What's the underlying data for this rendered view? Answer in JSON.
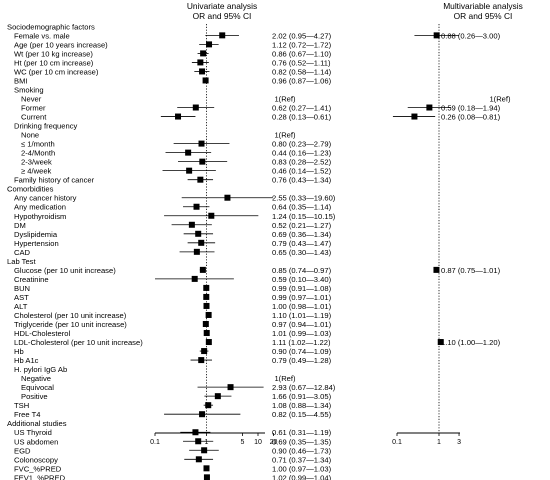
{
  "chart_data": {
    "type": "forest",
    "panels": [
      {
        "title": [
          "Univariate analysis",
          "OR and 95% CI"
        ],
        "scale": "log",
        "range": [
          0.1,
          20
        ],
        "ticks": [
          "0.1",
          "1",
          "5",
          "10",
          "20"
        ],
        "reference_line": 1
      },
      {
        "title": [
          "Multivariable analysis",
          "OR and 95% CI"
        ],
        "scale": "log",
        "range": [
          0.1,
          3
        ],
        "ticks": [
          "0.1",
          "1",
          "3"
        ],
        "reference_line": 1
      }
    ],
    "rows": [
      {
        "label": "Sociodemographic factors",
        "indent": 0,
        "type": "header"
      },
      {
        "label": "Female vs. male",
        "indent": 1,
        "uni": {
          "or": 2.02,
          "lo": 0.95,
          "hi": 4.27,
          "text": "2.02 (0.95—4.27)"
        },
        "multi": {
          "or": 0.88,
          "lo": 0.26,
          "hi": 3.0,
          "text": "0.88 (0.26—3.00)"
        }
      },
      {
        "label": "Age (per 10 years increase)",
        "indent": 1,
        "uni": {
          "or": 1.12,
          "lo": 0.72,
          "hi": 1.72,
          "text": "1.12 (0.72—1.72)"
        }
      },
      {
        "label": "Wt (per 10 kg increase)",
        "indent": 1,
        "uni": {
          "or": 0.86,
          "lo": 0.67,
          "hi": 1.1,
          "text": "0.86 (0.67—1.10)"
        }
      },
      {
        "label": "Ht (per 10 cm increase)",
        "indent": 1,
        "uni": {
          "or": 0.76,
          "lo": 0.52,
          "hi": 1.11,
          "text": "0.76 (0.52—1.11)"
        }
      },
      {
        "label": "WC (per 10 cm increase)",
        "indent": 1,
        "uni": {
          "or": 0.82,
          "lo": 0.58,
          "hi": 1.14,
          "text": "0.82 (0.58—1.14)"
        }
      },
      {
        "label": "BMI",
        "indent": 1,
        "uni": {
          "or": 0.96,
          "lo": 0.87,
          "hi": 1.06,
          "text": "0.96 (0.87—1.06)"
        }
      },
      {
        "label": "Smoking",
        "indent": 1,
        "type": "header"
      },
      {
        "label": "Never",
        "indent": 2,
        "uni": {
          "text": "1(Ref)"
        },
        "multi": {
          "text": "1(Ref)"
        }
      },
      {
        "label": "Former",
        "indent": 2,
        "uni": {
          "or": 0.62,
          "lo": 0.27,
          "hi": 1.41,
          "text": "0.62 (0.27—1.41)"
        },
        "multi": {
          "or": 0.59,
          "lo": 0.18,
          "hi": 1.94,
          "text": "0.59 (0.18—1.94)"
        }
      },
      {
        "label": "Current",
        "indent": 2,
        "uni": {
          "or": 0.28,
          "lo": 0.13,
          "hi": 0.61,
          "text": "0.28 (0.13—0.61)"
        },
        "multi": {
          "or": 0.26,
          "lo": 0.08,
          "hi": 0.81,
          "text": "0.26 (0.08—0.81)"
        }
      },
      {
        "label": "Drinking frequency",
        "indent": 1,
        "type": "header"
      },
      {
        "label": "None",
        "indent": 2,
        "uni": {
          "text": "1(Ref)"
        }
      },
      {
        "label": "≤ 1/month",
        "indent": 2,
        "uni": {
          "or": 0.8,
          "lo": 0.23,
          "hi": 2.79,
          "text": "0.80 (0.23—2.79)"
        }
      },
      {
        "label": "2-4/Month",
        "indent": 2,
        "uni": {
          "or": 0.44,
          "lo": 0.16,
          "hi": 1.23,
          "text": "0.44 (0.16—1.23)"
        }
      },
      {
        "label": "2-3/week",
        "indent": 2,
        "uni": {
          "or": 0.83,
          "lo": 0.28,
          "hi": 2.52,
          "text": "0.83 (0.28—2.52)"
        }
      },
      {
        "label": "≥ 4/week",
        "indent": 2,
        "uni": {
          "or": 0.46,
          "lo": 0.14,
          "hi": 1.52,
          "text": "0.46 (0.14—1.52)"
        }
      },
      {
        "label": "Family history of cancer",
        "indent": 1,
        "uni": {
          "or": 0.76,
          "lo": 0.43,
          "hi": 1.34,
          "text": "0.76 (0.43—1.34)"
        }
      },
      {
        "label": "Comorbidities",
        "indent": 0,
        "type": "header"
      },
      {
        "label": "Any cancer history",
        "indent": 1,
        "uni": {
          "or": 2.55,
          "lo": 0.33,
          "hi": 19.6,
          "text": "2.55 (0.33—19.60)"
        }
      },
      {
        "label": "Any medication",
        "indent": 1,
        "uni": {
          "or": 0.64,
          "lo": 0.35,
          "hi": 1.14,
          "text": "0.64 (0.35—1.14)"
        }
      },
      {
        "label": "Hypothyroidism",
        "indent": 1,
        "uni": {
          "or": 1.24,
          "lo": 0.15,
          "hi": 10.15,
          "text": "1.24 (0.15—10.15)"
        }
      },
      {
        "label": "DM",
        "indent": 1,
        "uni": {
          "or": 0.52,
          "lo": 0.21,
          "hi": 1.27,
          "text": "0.52 (0.21—1.27)"
        }
      },
      {
        "label": "Dyslipidemia",
        "indent": 1,
        "uni": {
          "or": 0.69,
          "lo": 0.36,
          "hi": 1.34,
          "text": "0.69 (0.36—1.34)"
        }
      },
      {
        "label": "Hypertension",
        "indent": 1,
        "uni": {
          "or": 0.79,
          "lo": 0.43,
          "hi": 1.47,
          "text": "0.79 (0.43—1.47)"
        }
      },
      {
        "label": "CAD",
        "indent": 1,
        "uni": {
          "or": 0.65,
          "lo": 0.3,
          "hi": 1.43,
          "text": "0.65 (0.30—1.43)"
        }
      },
      {
        "label": "Lab Test",
        "indent": 0,
        "type": "header"
      },
      {
        "label": "Glucose (per 10 unit increase)",
        "indent": 1,
        "uni": {
          "or": 0.85,
          "lo": 0.74,
          "hi": 0.97,
          "text": "0.85 (0.74—0.97)"
        },
        "multi": {
          "or": 0.87,
          "lo": 0.75,
          "hi": 1.01,
          "text": "0.87 (0.75—1.01)"
        }
      },
      {
        "label": "Creatinine",
        "indent": 1,
        "uni": {
          "or": 0.59,
          "lo": 0.1,
          "hi": 3.4,
          "text": "0.59 (0.10—3.40)"
        }
      },
      {
        "label": "BUN",
        "indent": 1,
        "uni": {
          "or": 0.99,
          "lo": 0.91,
          "hi": 1.08,
          "text": "0.99 (0.91—1.08)"
        }
      },
      {
        "label": "AST",
        "indent": 1,
        "uni": {
          "or": 0.99,
          "lo": 0.97,
          "hi": 1.01,
          "text": "0.99 (0.97—1.01)"
        }
      },
      {
        "label": "ALT",
        "indent": 1,
        "uni": {
          "or": 1.0,
          "lo": 0.98,
          "hi": 1.01,
          "text": "1.00 (0.98—1.01)"
        }
      },
      {
        "label": "Cholesterol (per 10 unit increase)",
        "indent": 1,
        "uni": {
          "or": 1.1,
          "lo": 1.01,
          "hi": 1.19,
          "text": "1.10 (1.01—1.19)"
        }
      },
      {
        "label": "Triglyceride (per 10 unit increase)",
        "indent": 1,
        "uni": {
          "or": 0.97,
          "lo": 0.94,
          "hi": 1.01,
          "text": "0.97 (0.94—1.01)"
        }
      },
      {
        "label": "HDL-Cholesterol",
        "indent": 1,
        "uni": {
          "or": 1.01,
          "lo": 0.99,
          "hi": 1.03,
          "text": "1.01 (0.99—1.03)"
        }
      },
      {
        "label": "LDL-Cholesterol (per 10 unit increase)",
        "indent": 1,
        "uni": {
          "or": 1.11,
          "lo": 1.02,
          "hi": 1.22,
          "text": "1.11 (1.02—1.22)"
        },
        "multi": {
          "or": 1.1,
          "lo": 1.0,
          "hi": 1.2,
          "text": "1.10 (1.00—1.20)"
        }
      },
      {
        "label": "Hb",
        "indent": 1,
        "uni": {
          "or": 0.9,
          "lo": 0.74,
          "hi": 1.09,
          "text": "0.90 (0.74—1.09)"
        }
      },
      {
        "label": "Hb A1c",
        "indent": 1,
        "uni": {
          "or": 0.79,
          "lo": 0.49,
          "hi": 1.28,
          "text": "0.79 (0.49—1.28)"
        }
      },
      {
        "label": "H. pylori IgG Ab",
        "indent": 1,
        "type": "header"
      },
      {
        "label": "Negative",
        "indent": 2,
        "uni": {
          "text": "1(Ref)"
        }
      },
      {
        "label": "Equivocal",
        "indent": 2,
        "uni": {
          "or": 2.93,
          "lo": 0.67,
          "hi": 12.84,
          "text": "2.93 (0.67—12.84)"
        }
      },
      {
        "label": "Positive",
        "indent": 2,
        "uni": {
          "or": 1.66,
          "lo": 0.91,
          "hi": 3.05,
          "text": "1.66 (0.91—3.05)"
        }
      },
      {
        "label": "TSH",
        "indent": 1,
        "uni": {
          "or": 1.08,
          "lo": 0.88,
          "hi": 1.34,
          "text": "1.08 (0.88—1.34)"
        }
      },
      {
        "label": "Free T4",
        "indent": 1,
        "uni": {
          "or": 0.82,
          "lo": 0.15,
          "hi": 4.55,
          "text": "0.82 (0.15—4.55)"
        }
      },
      {
        "label": "Additional studies",
        "indent": 0,
        "type": "header"
      },
      {
        "label": "US Thyroid",
        "indent": 1,
        "uni": {
          "or": 0.61,
          "lo": 0.31,
          "hi": 1.19,
          "text": "0.61 (0.31—1.19)"
        }
      },
      {
        "label": "US abdomen",
        "indent": 1,
        "uni": {
          "or": 0.69,
          "lo": 0.35,
          "hi": 1.35,
          "text": "0.69 (0.35—1.35)"
        }
      },
      {
        "label": "EGD",
        "indent": 1,
        "uni": {
          "or": 0.9,
          "lo": 0.46,
          "hi": 1.73,
          "text": "0.90 (0.46—1.73)"
        }
      },
      {
        "label": "Colonoscopy",
        "indent": 1,
        "uni": {
          "or": 0.71,
          "lo": 0.37,
          "hi": 1.34,
          "text": "0.71 (0.37—1.34)"
        }
      },
      {
        "label": "FVC_%PRED",
        "indent": 1,
        "uni": {
          "or": 1.0,
          "lo": 0.97,
          "hi": 1.03,
          "text": "1.00 (0.97—1.03)"
        }
      },
      {
        "label": "FEV1_%PRED",
        "indent": 1,
        "uni": {
          "or": 1.02,
          "lo": 0.99,
          "hi": 1.04,
          "text": "1.02 (0.99—1.04)"
        }
      }
    ]
  }
}
